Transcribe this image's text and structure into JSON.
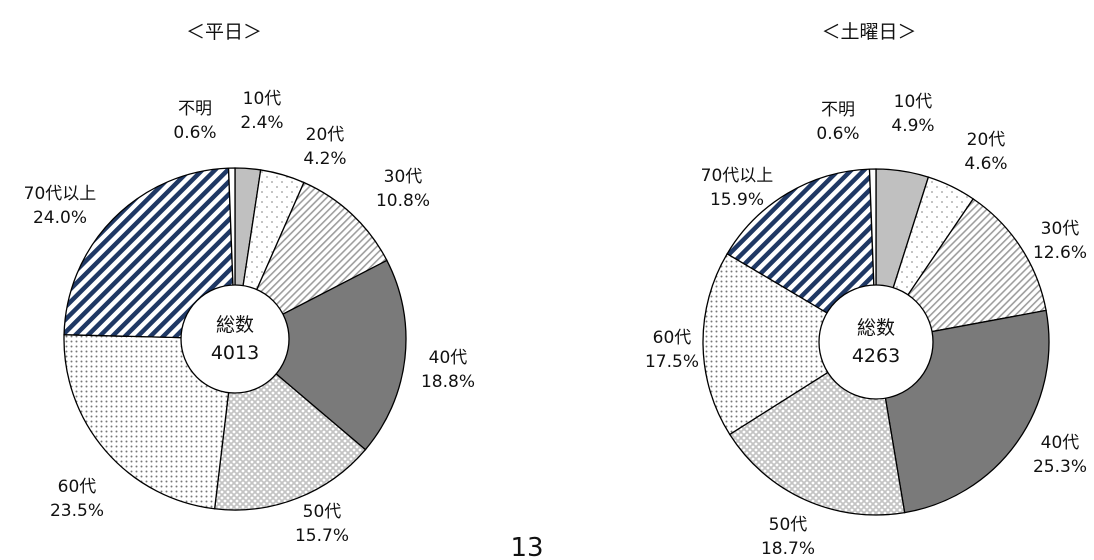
{
  "page_number": "13",
  "chart_data": [
    {
      "type": "pie",
      "title": "＜平日＞",
      "center_label": "総数",
      "center_value": "4013",
      "categories": [
        "10代",
        "20代",
        "30代",
        "40代",
        "50代",
        "60代",
        "70代以上",
        "不明"
      ],
      "values": [
        2.4,
        4.2,
        10.8,
        18.8,
        15.7,
        23.5,
        24.0,
        0.6
      ],
      "value_labels": [
        "2.4%",
        "4.2%",
        "10.8%",
        "18.8%",
        "15.7%",
        "23.5%",
        "24.0%",
        "0.6%"
      ]
    },
    {
      "type": "pie",
      "title": "＜土曜日＞",
      "center_label": "総数",
      "center_value": "4263",
      "categories": [
        "10代",
        "20代",
        "30代",
        "40代",
        "50代",
        "60代",
        "70代以上",
        "不明"
      ],
      "values": [
        4.9,
        4.6,
        12.6,
        25.3,
        18.7,
        17.5,
        15.9,
        0.6
      ],
      "value_labels": [
        "4.9%",
        "4.6%",
        "12.6%",
        "25.3%",
        "18.7%",
        "17.5%",
        "15.9%",
        "0.6%"
      ]
    }
  ]
}
